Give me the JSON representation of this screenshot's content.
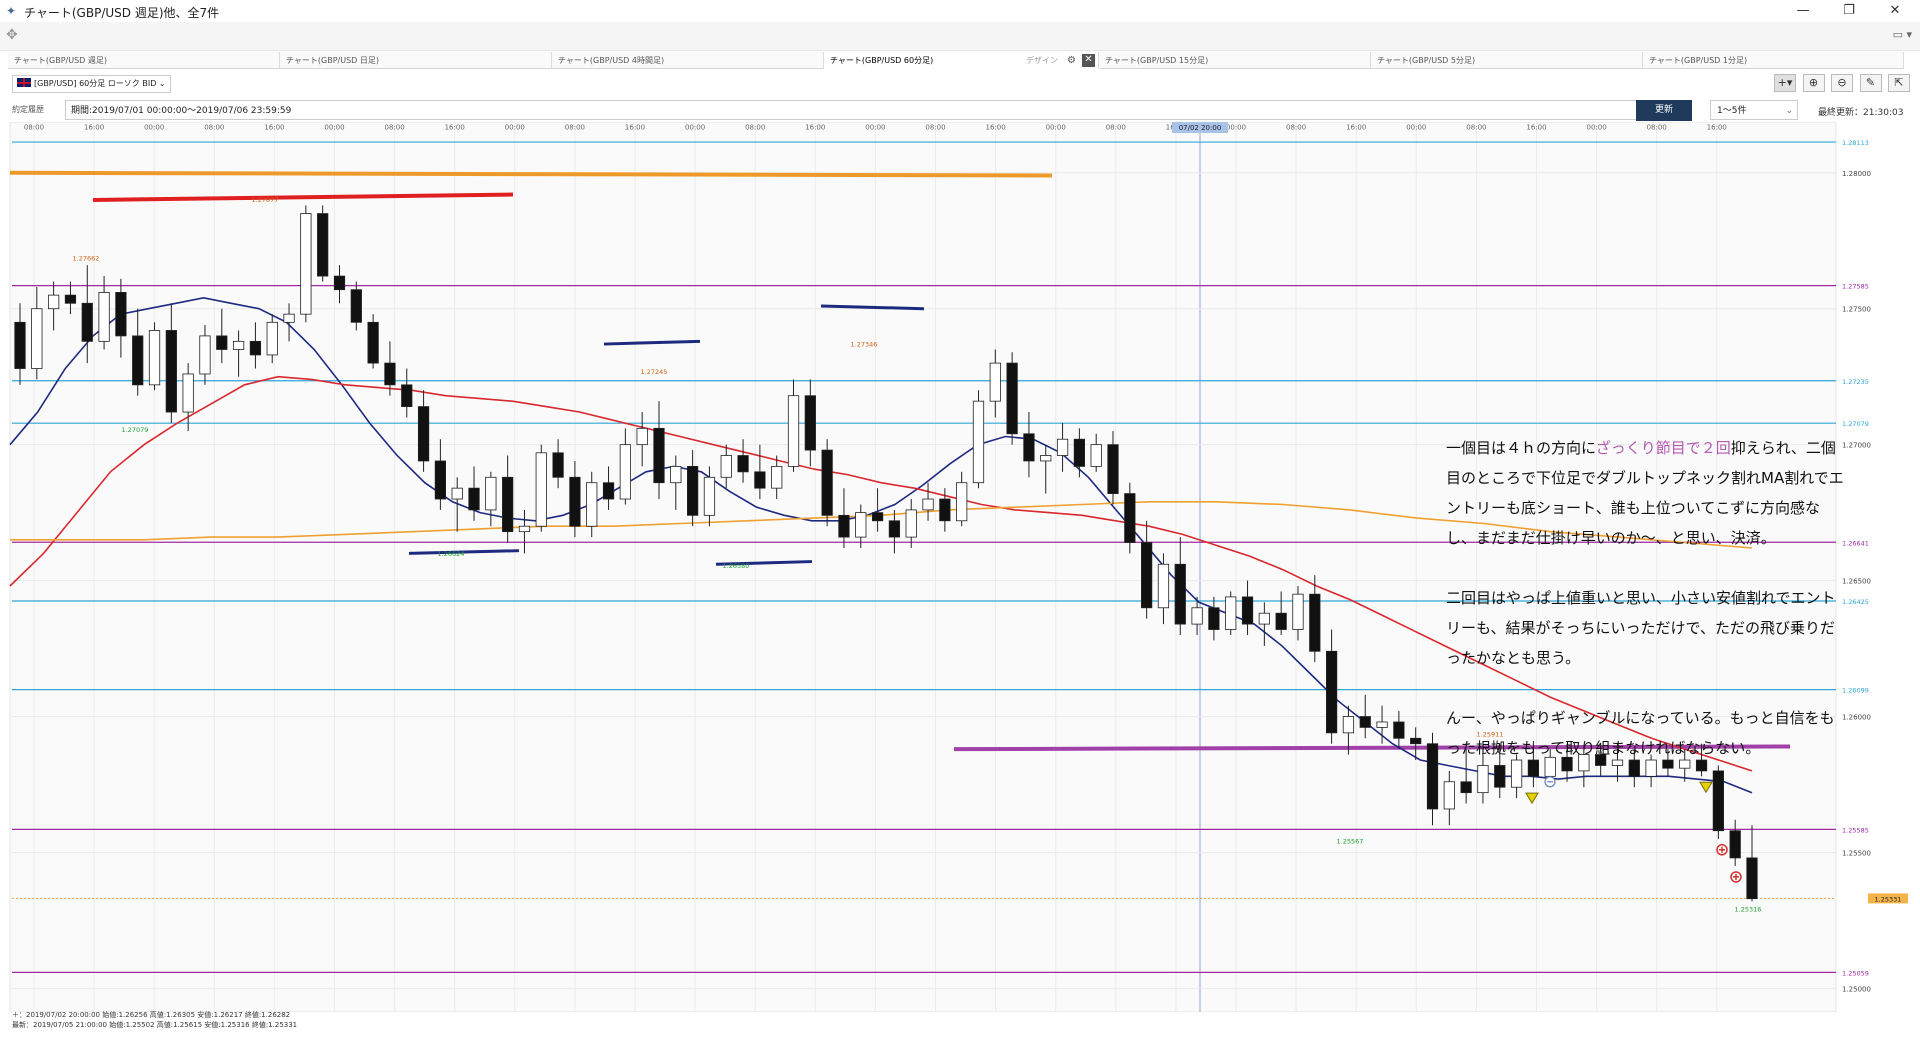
{
  "window": {
    "title": "チャート(GBP/USD 週足)他、全7件",
    "icon": "chart-app-icon"
  },
  "tabs": [
    {
      "label": "チャート(GBP/USD 週足)",
      "active": false
    },
    {
      "label": "チャート(GBP/USD 日足)",
      "active": false
    },
    {
      "label": "チャート(GBP/USD 4時間足)",
      "active": false
    },
    {
      "label": "チャート(GBP/USD 60分足)",
      "active": true
    },
    {
      "label": "チャート(GBP/USD 15分足)",
      "active": false
    },
    {
      "label": "チャート(GBP/USD 5分足)",
      "active": false
    },
    {
      "label": "チャート(GBP/USD 1分足)",
      "active": false
    }
  ],
  "tab_design_label": "デザイン",
  "symbol": {
    "label": "[GBP/USD] 60分足 ローソク BID",
    "flag": "uk-flag-icon"
  },
  "period": {
    "tab_label": "約定履歴",
    "range": "期間:2019/07/01 00:00:00〜2019/07/06 23:59:59",
    "update_button": "更新",
    "select_value": "1〜5件",
    "last_update": "最終更新：21:30:03"
  },
  "colors": {
    "ma_short": "#1e2a80",
    "ma_mid": "#d9282e",
    "ma_long": "#f0a030",
    "hline_cyan": "#2ea6d6",
    "hline_purple": "#a02aa0",
    "annotation_red": "#e02020",
    "annotation_orange": "#ee9a2a",
    "annotation_navy": "#1e2a80",
    "annotation_purple": "#a040a8",
    "highlight_text": "#b45aaf"
  },
  "chart_data": {
    "type": "candlestick",
    "pair": "GBP/USD",
    "timeframe": "60分足",
    "x_tick_labels": [
      "08:00",
      "16:00",
      "00:00",
      "08:00",
      "16:00",
      "00:00",
      "08:00",
      "16:00",
      "00:00",
      "08:00",
      "16:00",
      "00:00",
      "08:00",
      "16:00",
      "00:00",
      "08:00",
      "16:00",
      "00:00",
      "08:00",
      "16:00",
      "00:00",
      "08:00",
      "16:00",
      "00:00",
      "08:00",
      "16:00",
      "00:00",
      "08:00",
      "16:00"
    ],
    "crosshair_time": "07/02 20:00",
    "ylim": [
      1.2495,
      1.2815
    ],
    "y_ticks": [
      "1.28000",
      "1.27500",
      "1.27000",
      "1.26500",
      "1.26000",
      "1.25500",
      "1.25000"
    ],
    "horizontal_lines": [
      {
        "value": "1.28113",
        "color": "cyan"
      },
      {
        "value": "1.27585",
        "color": "purple"
      },
      {
        "value": "1.27235",
        "color": "cyan"
      },
      {
        "value": "1.27079",
        "color": "cyan"
      },
      {
        "value": "1.26641",
        "color": "purple"
      },
      {
        "value": "1.26425",
        "color": "cyan"
      },
      {
        "value": "1.26099",
        "color": "cyan"
      },
      {
        "value": "1.25585",
        "color": "purple"
      },
      {
        "value": "1.25059",
        "color": "purple"
      }
    ],
    "current_price": "1.25331",
    "price_labels": [
      {
        "text": "1.27662",
        "kind": "high"
      },
      {
        "text": "1.27877",
        "kind": "high"
      },
      {
        "text": "1.27079",
        "kind": "low"
      },
      {
        "text": "1.27245",
        "kind": "high"
      },
      {
        "text": "1.26624",
        "kind": "low"
      },
      {
        "text": "1.26580",
        "kind": "low"
      },
      {
        "text": "1.27346",
        "kind": "high"
      },
      {
        "text": "1.25911",
        "kind": "high"
      },
      {
        "text": "1.25567",
        "kind": "low"
      },
      {
        "text": "1.25316",
        "kind": "low"
      }
    ],
    "series_ma": [
      {
        "name": "",
        "values": [
          1.27,
          1.2712,
          1.2728,
          1.274,
          1.2748,
          1.275,
          1.2752,
          1.2754,
          1.2752,
          1.275,
          1.2745,
          1.2735,
          1.2722,
          1.2708,
          1.2696,
          1.2686,
          1.2679,
          1.2675,
          1.2673,
          1.2672,
          1.2674,
          1.2678,
          1.2684,
          1.269,
          1.2692,
          1.269,
          1.2683,
          1.2677,
          1.2674,
          1.2672,
          1.2672,
          1.2674,
          1.2678,
          1.2685,
          1.2693,
          1.27,
          1.2703,
          1.2702,
          1.2697,
          1.2688,
          1.2676,
          1.2664,
          1.2652,
          1.2642,
          1.2638,
          1.2634,
          1.2626,
          1.2616,
          1.2606,
          1.2598,
          1.259,
          1.2584,
          1.2582,
          1.258,
          1.2578,
          1.2578,
          1.2577,
          1.2578,
          1.2578,
          1.2578,
          1.2578,
          1.2577,
          1.2576,
          1.2572
        ]
      },
      {
        "name": "",
        "values": [
          1.2648,
          1.266,
          1.2675,
          1.269,
          1.27,
          1.2708,
          1.2715,
          1.2722,
          1.2725,
          1.2724,
          1.2722,
          1.2721,
          1.272,
          1.2718,
          1.2717,
          1.2716,
          1.2714,
          1.2712,
          1.2709,
          1.2706,
          1.2703,
          1.27,
          1.2697,
          1.2694,
          1.2691,
          1.2689,
          1.2686,
          1.2684,
          1.2681,
          1.2678,
          1.2676,
          1.2675,
          1.2674,
          1.2672,
          1.267,
          1.2667,
          1.2663,
          1.2659,
          1.2654,
          1.2648,
          1.2643,
          1.2637,
          1.2631,
          1.2625,
          1.2619,
          1.2613,
          1.2607,
          1.2602,
          1.2597,
          1.2592,
          1.2588,
          1.2584,
          1.258
        ]
      },
      {
        "name": "",
        "values": [
          1.2665,
          1.2665,
          1.2665,
          1.2666,
          1.2666,
          1.2667,
          1.2668,
          1.2669,
          1.267,
          1.267,
          1.2671,
          1.2672,
          1.2673,
          1.2674,
          1.2676,
          1.2677,
          1.2678,
          1.2679,
          1.2679,
          1.2678,
          1.2676,
          1.2673,
          1.2671,
          1.2668,
          1.2666,
          1.2664,
          1.2662
        ]
      }
    ],
    "candles": [
      [
        1.2745,
        1.2752,
        1.2722,
        1.2728
      ],
      [
        1.2728,
        1.2758,
        1.2724,
        1.275
      ],
      [
        1.275,
        1.276,
        1.2742,
        1.2755
      ],
      [
        1.2755,
        1.276,
        1.2748,
        1.2752
      ],
      [
        1.2752,
        1.2766,
        1.273,
        1.2738
      ],
      [
        1.2738,
        1.2762,
        1.2735,
        1.2756
      ],
      [
        1.2756,
        1.2761,
        1.2732,
        1.274
      ],
      [
        1.274,
        1.275,
        1.2718,
        1.2722
      ],
      [
        1.2722,
        1.2745,
        1.272,
        1.2742
      ],
      [
        1.2742,
        1.2752,
        1.2708,
        1.2712
      ],
      [
        1.2712,
        1.273,
        1.2705,
        1.2726
      ],
      [
        1.2726,
        1.2744,
        1.2722,
        1.274
      ],
      [
        1.274,
        1.275,
        1.273,
        1.2735
      ],
      [
        1.2735,
        1.2742,
        1.2725,
        1.2738
      ],
      [
        1.2738,
        1.2745,
        1.2728,
        1.2733
      ],
      [
        1.2733,
        1.2748,
        1.273,
        1.2745
      ],
      [
        1.2745,
        1.2752,
        1.2738,
        1.2748
      ],
      [
        1.2748,
        1.2788,
        1.2745,
        1.2785
      ],
      [
        1.2785,
        1.2788,
        1.276,
        1.2762
      ],
      [
        1.2762,
        1.2766,
        1.2752,
        1.2757
      ],
      [
        1.2757,
        1.276,
        1.2742,
        1.2745
      ],
      [
        1.2745,
        1.2748,
        1.2728,
        1.273
      ],
      [
        1.273,
        1.2738,
        1.2718,
        1.2722
      ],
      [
        1.2722,
        1.2728,
        1.271,
        1.2714
      ],
      [
        1.2714,
        1.272,
        1.269,
        1.2694
      ],
      [
        1.2694,
        1.2702,
        1.2676,
        1.268
      ],
      [
        1.268,
        1.2688,
        1.2668,
        1.2684
      ],
      [
        1.2684,
        1.2692,
        1.2672,
        1.2676
      ],
      [
        1.2676,
        1.269,
        1.267,
        1.2688
      ],
      [
        1.2688,
        1.2696,
        1.2664,
        1.2668
      ],
      [
        1.2668,
        1.2676,
        1.266,
        1.267
      ],
      [
        1.267,
        1.27,
        1.2668,
        1.2697
      ],
      [
        1.2697,
        1.2702,
        1.2684,
        1.2688
      ],
      [
        1.2688,
        1.2694,
        1.2666,
        1.267
      ],
      [
        1.267,
        1.269,
        1.2666,
        1.2686
      ],
      [
        1.2686,
        1.2692,
        1.2676,
        1.268
      ],
      [
        1.268,
        1.2706,
        1.2678,
        1.27
      ],
      [
        1.27,
        1.2712,
        1.2692,
        1.2706
      ],
      [
        1.2706,
        1.2716,
        1.268,
        1.2686
      ],
      [
        1.2686,
        1.2696,
        1.2676,
        1.2692
      ],
      [
        1.2692,
        1.2698,
        1.267,
        1.2674
      ],
      [
        1.2674,
        1.2692,
        1.267,
        1.2688
      ],
      [
        1.2688,
        1.27,
        1.2684,
        1.2696
      ],
      [
        1.2696,
        1.2702,
        1.2686,
        1.269
      ],
      [
        1.269,
        1.27,
        1.268,
        1.2684
      ],
      [
        1.2684,
        1.2696,
        1.268,
        1.2692
      ],
      [
        1.2692,
        1.2724,
        1.269,
        1.2718
      ],
      [
        1.2718,
        1.2724,
        1.2692,
        1.2698
      ],
      [
        1.2698,
        1.2702,
        1.267,
        1.2674
      ],
      [
        1.2674,
        1.2684,
        1.2662,
        1.2666
      ],
      [
        1.2666,
        1.2678,
        1.2662,
        1.2675
      ],
      [
        1.2675,
        1.2684,
        1.2668,
        1.2672
      ],
      [
        1.2672,
        1.2676,
        1.266,
        1.2666
      ],
      [
        1.2666,
        1.268,
        1.2662,
        1.2676
      ],
      [
        1.2676,
        1.2686,
        1.2672,
        1.268
      ],
      [
        1.268,
        1.2684,
        1.2668,
        1.2672
      ],
      [
        1.2672,
        1.269,
        1.267,
        1.2686
      ],
      [
        1.2686,
        1.272,
        1.2684,
        1.2716
      ],
      [
        1.2716,
        1.2735,
        1.271,
        1.273
      ],
      [
        1.273,
        1.2734,
        1.27,
        1.2704
      ],
      [
        1.2704,
        1.2712,
        1.2688,
        1.2694
      ],
      [
        1.2694,
        1.27,
        1.2682,
        1.2696
      ],
      [
        1.2696,
        1.2708,
        1.269,
        1.2702
      ],
      [
        1.2702,
        1.2706,
        1.2688,
        1.2692
      ],
      [
        1.2692,
        1.2704,
        1.269,
        1.27
      ],
      [
        1.27,
        1.2705,
        1.2678,
        1.2682
      ],
      [
        1.2682,
        1.2686,
        1.266,
        1.2664
      ],
      [
        1.2664,
        1.2672,
        1.2636,
        1.264
      ],
      [
        1.264,
        1.266,
        1.2634,
        1.2656
      ],
      [
        1.2656,
        1.2666,
        1.263,
        1.2634
      ],
      [
        1.2634,
        1.2644,
        1.263,
        1.264
      ],
      [
        1.264,
        1.2644,
        1.2628,
        1.2632
      ],
      [
        1.2632,
        1.2646,
        1.263,
        1.2644
      ],
      [
        1.2644,
        1.265,
        1.263,
        1.2634
      ],
      [
        1.2634,
        1.2642,
        1.2626,
        1.2638
      ],
      [
        1.2638,
        1.2646,
        1.263,
        1.2632
      ],
      [
        1.2632,
        1.2648,
        1.2628,
        1.2645
      ],
      [
        1.2645,
        1.2652,
        1.262,
        1.2624
      ],
      [
        1.2624,
        1.2632,
        1.259,
        1.2594
      ],
      [
        1.2594,
        1.2604,
        1.2586,
        1.26
      ],
      [
        1.26,
        1.2608,
        1.2592,
        1.2596
      ],
      [
        1.2596,
        1.2604,
        1.259,
        1.2598
      ],
      [
        1.2598,
        1.2602,
        1.2588,
        1.2592
      ],
      [
        1.2592,
        1.2596,
        1.2584,
        1.259
      ],
      [
        1.259,
        1.2594,
        1.256,
        1.2566
      ],
      [
        1.2566,
        1.258,
        1.256,
        1.2576
      ],
      [
        1.2576,
        1.2588,
        1.2568,
        1.2572
      ],
      [
        1.2572,
        1.2586,
        1.2568,
        1.2582
      ],
      [
        1.2582,
        1.259,
        1.257,
        1.2574
      ],
      [
        1.2574,
        1.2586,
        1.257,
        1.2584
      ],
      [
        1.2584,
        1.2591,
        1.2574,
        1.2578
      ],
      [
        1.2578,
        1.2588,
        1.2574,
        1.2585
      ],
      [
        1.2585,
        1.259,
        1.2576,
        1.258
      ],
      [
        1.258,
        1.2588,
        1.2574,
        1.2586
      ],
      [
        1.2586,
        1.259,
        1.2578,
        1.2582
      ],
      [
        1.2582,
        1.259,
        1.2576,
        1.2584
      ],
      [
        1.2584,
        1.2588,
        1.2574,
        1.2578
      ],
      [
        1.2578,
        1.2586,
        1.2574,
        1.2584
      ],
      [
        1.2584,
        1.2588,
        1.2578,
        1.2581
      ],
      [
        1.2581,
        1.2588,
        1.2576,
        1.2584
      ],
      [
        1.2584,
        1.259,
        1.2578,
        1.258
      ],
      [
        1.258,
        1.2582,
        1.2555,
        1.2558
      ],
      [
        1.2558,
        1.2562,
        1.2545,
        1.2548
      ],
      [
        1.2548,
        1.256,
        1.2532,
        1.2533
      ]
    ]
  },
  "annotation_text": {
    "para1_a": "一個目は４ｈの方向に",
    "para1_hl": "ざっくり節目で２回",
    "para1_b": "抑えられ、二個目のところで下位足でダブルトップネック割れMA割れでエントリーも底ショート、誰も上位ついてこずに方向感なし、まだまだ仕掛け早いのか〜、と思い、決済。",
    "para2": "二回目はやっぱ上値重いと思い、小さい安値割れでエントリーも、結果がそっちにいっただけで、ただの飛び乗りだったかなとも思う。",
    "para3": "んー、やっぱりギャンブルになっている。もっと自信をもった根拠をもって取り組まなければならない。"
  },
  "footer": {
    "crosshair_info": "＋：2019/07/02 20:00:00 始値:1.26256 高値:1.26305 安値:1.26217 終値:1.26282",
    "latest_info": "最新：2019/07/05 21:00:00 始値:1.25502 高値:1.25615 安値:1.25316 終値:1.25331"
  }
}
